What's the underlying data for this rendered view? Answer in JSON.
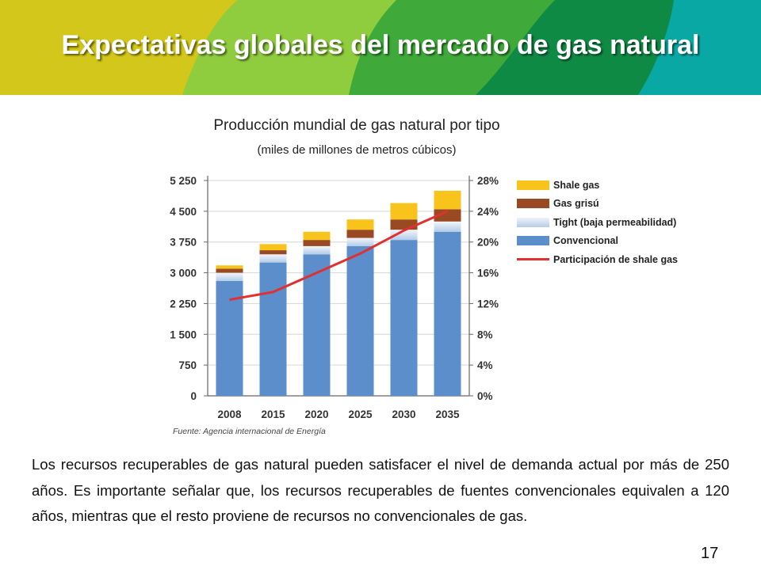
{
  "slide": {
    "title": "Expectativas globales del mercado de gas natural",
    "page_number": "17",
    "body_text": "Los recursos recuperables de gas natural pueden satisfacer el nivel de demanda actual por más de 250 años. Es importante señalar que, los recursos recuperables de fuentes convencionales equivalen a 120 años, mientras que el resto proviene de recursos no convencionales de gas.",
    "source": "Fuente: Agencia internacional de Energía"
  },
  "colors": {
    "banner": [
      "#d2c71a",
      "#8fcc3e",
      "#3faa3a",
      "#0f8a45",
      "#0aa8a5"
    ],
    "convencional": "#5b8ecb",
    "tight": "#c9d9ee",
    "grisu": "#9a4a22",
    "shale": "#f8c31a",
    "shale_share_line": "#e03030"
  },
  "chart_data": {
    "type": "bar",
    "stacked": true,
    "title": "Producción mundial de gas natural por tipo",
    "subtitle": "(miles de millones de metros cúbicos)",
    "categories": [
      "2008",
      "2015",
      "2020",
      "2025",
      "2030",
      "2035"
    ],
    "series": [
      {
        "name": "Convencional",
        "values": [
          2800,
          3250,
          3450,
          3650,
          3800,
          4000
        ]
      },
      {
        "name": "Tight (baja permeabilidad)",
        "values": [
          200,
          200,
          200,
          200,
          250,
          250
        ]
      },
      {
        "name": "Gas grisú",
        "values": [
          100,
          100,
          150,
          200,
          250,
          300
        ]
      },
      {
        "name": "Shale gas",
        "values": [
          80,
          150,
          200,
          250,
          400,
          450
        ]
      }
    ],
    "line_series": {
      "name": "Participación de shale gas",
      "axis": "right",
      "values": [
        12.5,
        13.5,
        16,
        18.5,
        21.5,
        24
      ]
    },
    "y_left": {
      "ticks": [
        "0",
        "750",
        "1 500",
        "2 250",
        "3 000",
        "3 750",
        "4 500",
        "5 250"
      ],
      "ylim": [
        0,
        5250
      ]
    },
    "y_right": {
      "ticks": [
        "0%",
        "4%",
        "8%",
        "12%",
        "16%",
        "20%",
        "24%",
        "28%"
      ],
      "ylim": [
        0,
        28
      ]
    },
    "grid": true,
    "legend_position": "right"
  }
}
